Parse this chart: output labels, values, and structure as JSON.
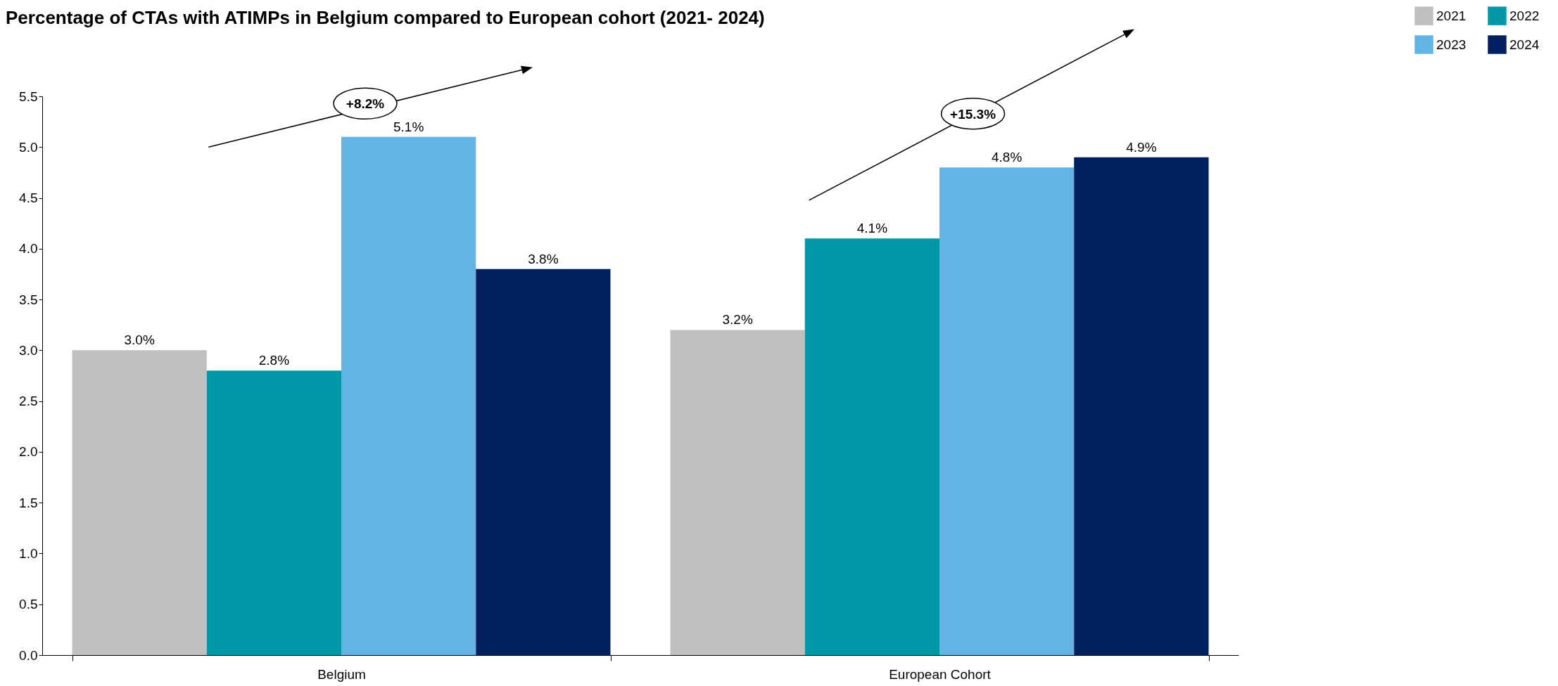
{
  "chart_data": {
    "type": "bar",
    "title": "Percentage of CTAs with ATIMPs in Belgium compared to European cohort (2021- 2024)",
    "categories": [
      "Belgium",
      "European Cohort"
    ],
    "series": [
      {
        "name": "2021",
        "color": "#bfbfbf",
        "values": [
          3.0,
          3.2
        ],
        "value_labels": [
          "3.0%",
          "3.2%"
        ]
      },
      {
        "name": "2022",
        "color": "#0097a7",
        "values": [
          2.8,
          4.1
        ],
        "value_labels": [
          "2.8%",
          "4.1%"
        ]
      },
      {
        "name": "2023",
        "color": "#63b4e4",
        "values": [
          5.1,
          4.8
        ],
        "value_labels": [
          "5.1%",
          "4.8%"
        ]
      },
      {
        "name": "2024",
        "color": "#002060",
        "values": [
          3.8,
          4.9
        ],
        "value_labels": [
          "3.8%",
          "4.9%"
        ]
      }
    ],
    "ylim": [
      0,
      5.5
    ],
    "yticks": [
      {
        "value": 0,
        "label": "0.0"
      },
      0.5,
      {
        "value": 1,
        "label": "1.0"
      },
      1.5,
      {
        "value": 2,
        "label": "2.0"
      },
      2.5,
      {
        "value": 3,
        "label": "3.0"
      },
      3.5,
      {
        "value": 4,
        "label": "4.0"
      },
      4.5,
      {
        "value": 5,
        "label": "5.0"
      },
      5.5
    ],
    "grid": false,
    "legend": "top right",
    "annotations": [
      "+8.2%",
      "+15.3%"
    ]
  }
}
